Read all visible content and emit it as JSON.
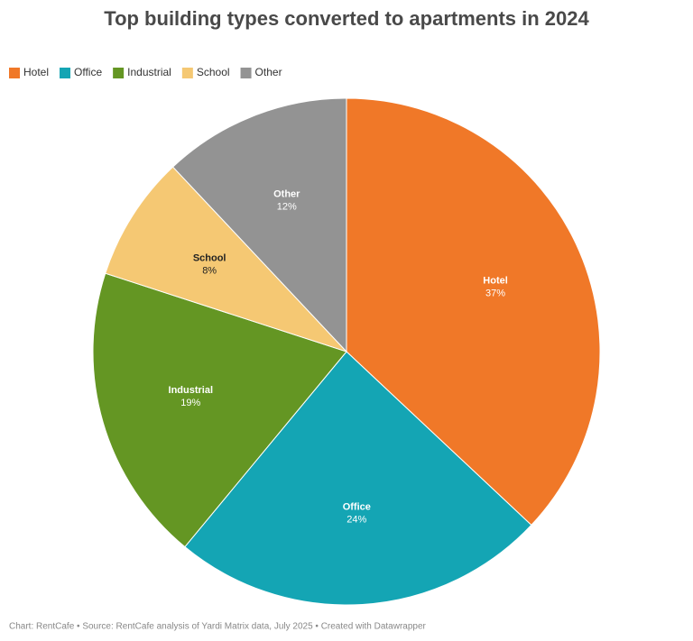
{
  "chart_data": {
    "type": "pie",
    "title": "Top building types converted to apartments in 2024",
    "categories": [
      "Hotel",
      "Office",
      "Industrial",
      "School",
      "Other"
    ],
    "values": [
      37,
      24,
      19,
      8,
      12
    ],
    "value_labels": [
      "37%",
      "24%",
      "19%",
      "8%",
      "12%"
    ],
    "colors": [
      "#f07828",
      "#14a5b4",
      "#649623",
      "#f5c873",
      "#939393"
    ],
    "legend": "top-left",
    "source": "Chart: RentCafe • Source: RentCafe analysis of Yardi Matrix data, July 2025  • Created with Datawrapper"
  }
}
